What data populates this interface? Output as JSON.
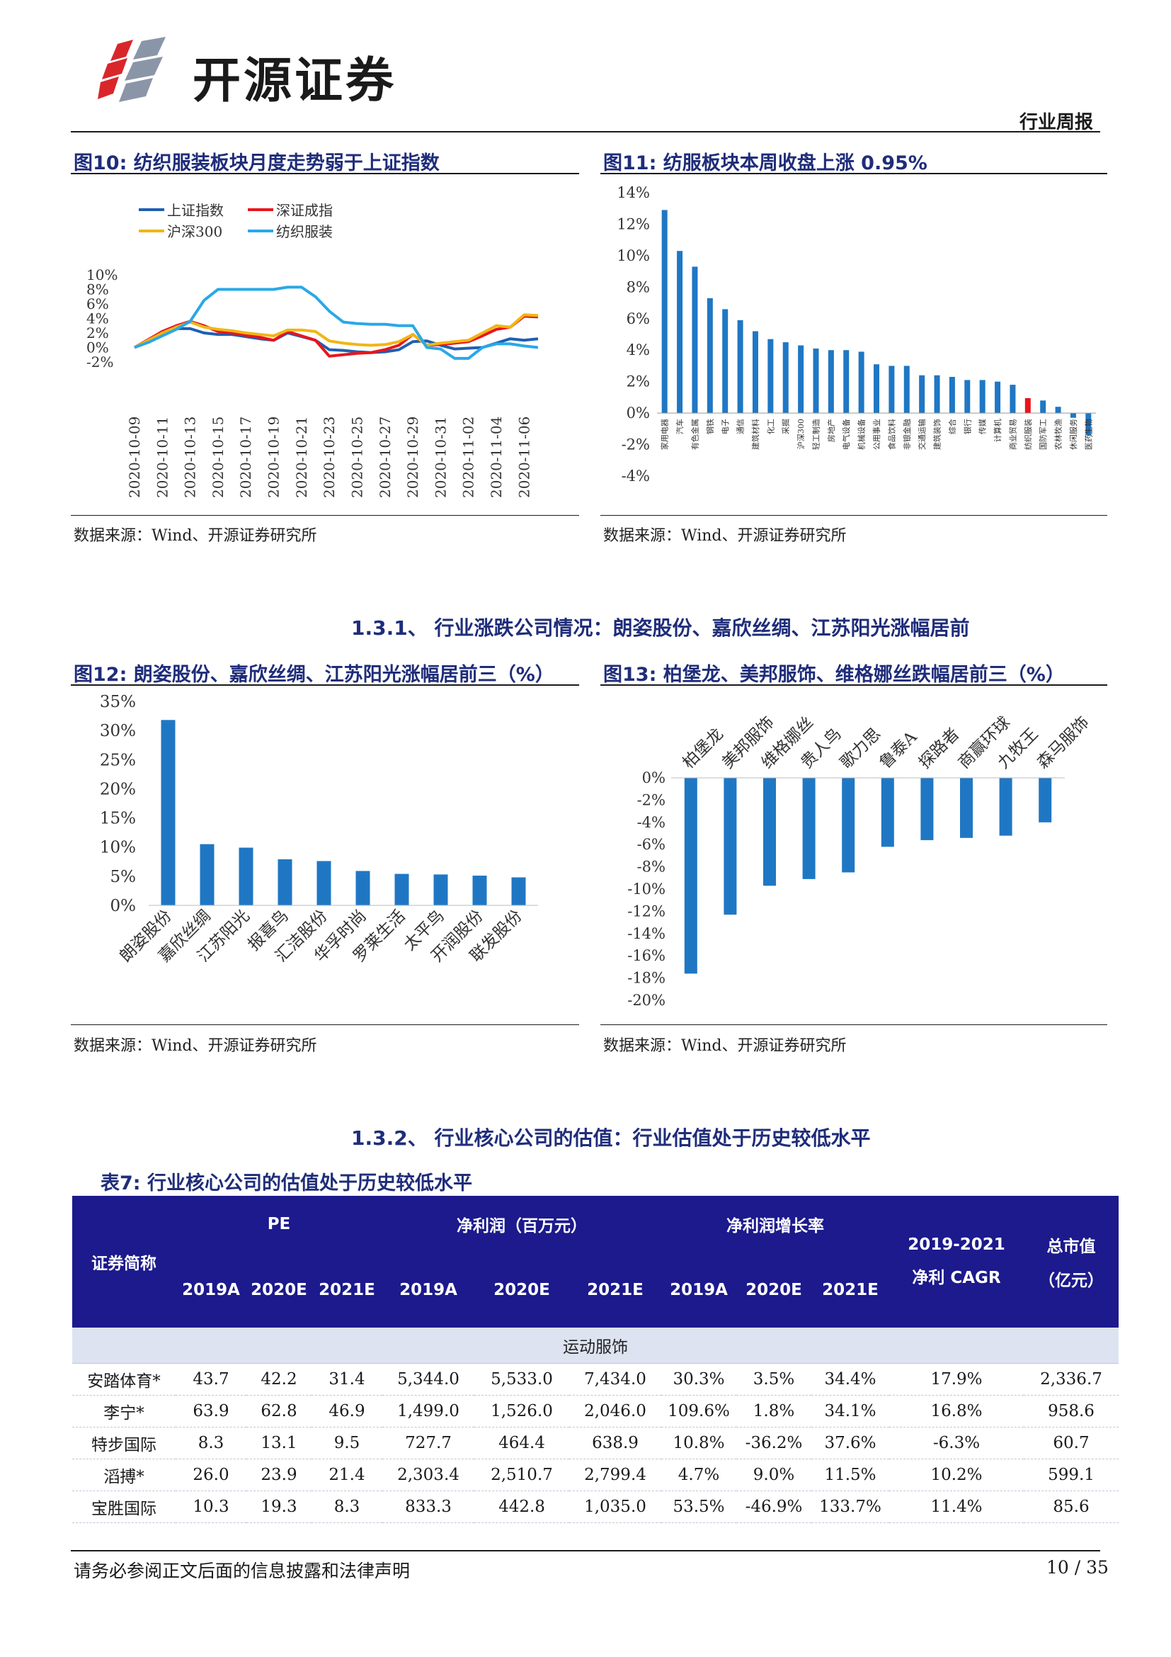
{
  "header": {
    "logo_text": "开源证券",
    "doc_type": "行业周报"
  },
  "fig10": {
    "title": "图10: 纺织服装板块月度走势弱于上证指数",
    "source": "数据来源：Wind、开源证券研究所",
    "chart_data": {
      "type": "line",
      "x": [
        "2020-10-09",
        "2020-10-10",
        "2020-10-11",
        "2020-10-12",
        "2020-10-13",
        "2020-10-14",
        "2020-10-15",
        "2020-10-16",
        "2020-10-17",
        "2020-10-18",
        "2020-10-19",
        "2020-10-20",
        "2020-10-21",
        "2020-10-22",
        "2020-10-23",
        "2020-10-24",
        "2020-10-25",
        "2020-10-26",
        "2020-10-27",
        "2020-10-28",
        "2020-10-29",
        "2020-10-30",
        "2020-10-31",
        "2020-11-01",
        "2020-11-02",
        "2020-11-03",
        "2020-11-04",
        "2020-11-05",
        "2020-11-06",
        "2020-11-07"
      ],
      "xticks": [
        "2020-10-09",
        "2020-10-11",
        "2020-10-13",
        "2020-10-15",
        "2020-10-17",
        "2020-10-19",
        "2020-10-21",
        "2020-10-23",
        "2020-10-25",
        "2020-10-27",
        "2020-10-29",
        "2020-10-31",
        "2020-11-02",
        "2020-11-04",
        "2020-11-06"
      ],
      "ylim": [
        -2,
        10
      ],
      "yticks": [
        "10%",
        "8%",
        "6%",
        "4%",
        "2%",
        "0%",
        "-2%"
      ],
      "series": [
        {
          "name": "上证指数",
          "color": "#1f5fb0",
          "values": [
            0,
            0.9,
            1.8,
            2.6,
            2.6,
            2.0,
            1.8,
            1.8,
            1.5,
            1.2,
            1.0,
            2.0,
            1.5,
            1.0,
            -0.3,
            -0.4,
            -0.6,
            -0.7,
            -0.6,
            -0.3,
            0.8,
            0.9,
            0.3,
            -0.2,
            -0.1,
            0,
            0.6,
            1.2,
            1.0,
            1.2
          ]
        },
        {
          "name": "深证成指",
          "color": "#e8151b",
          "values": [
            0,
            1.1,
            2.2,
            3.0,
            3.6,
            3.0,
            2.2,
            2.0,
            1.7,
            1.4,
            1.0,
            2.2,
            1.6,
            1.0,
            -1.2,
            -1.0,
            -0.8,
            -0.7,
            -0.3,
            0.3,
            1.8,
            0.3,
            0.4,
            0.6,
            0.8,
            1.6,
            2.5,
            2.8,
            4.3,
            4.2
          ]
        },
        {
          "name": "沪深300",
          "color": "#f2b515",
          "values": [
            0,
            1.0,
            2.0,
            2.8,
            3.5,
            2.8,
            2.5,
            2.3,
            2.0,
            1.8,
            1.6,
            2.4,
            2.4,
            2.2,
            0.9,
            0.6,
            0.4,
            0.3,
            0.4,
            0.8,
            1.8,
            0.3,
            0.6,
            0.8,
            1.0,
            2.0,
            3.0,
            2.8,
            4.5,
            4.4
          ]
        },
        {
          "name": "纺织服装",
          "color": "#29a8e8",
          "values": [
            0,
            0.7,
            1.6,
            2.5,
            3.6,
            6.5,
            8.0,
            8.0,
            8.0,
            8.0,
            8.0,
            8.3,
            8.3,
            7.0,
            5.0,
            3.5,
            3.3,
            3.2,
            3.2,
            3.0,
            3.0,
            0,
            -0.2,
            -1.5,
            -1.5,
            0,
            0.5,
            0.5,
            0.2,
            0
          ]
        }
      ],
      "legend": [
        "上证指数",
        "深证成指",
        "沪深300",
        "纺织服装"
      ]
    }
  },
  "fig11": {
    "title": "图11: 纺服板块本周收盘上涨 0.95%",
    "source": "数据来源：Wind、开源证券研究所",
    "chart_data": {
      "type": "bar",
      "ylim": [
        -4,
        14
      ],
      "yticks": [
        "14%",
        "12%",
        "10%",
        "8%",
        "6%",
        "4%",
        "2%",
        "0%",
        "-2%",
        "-4%"
      ],
      "categories": [
        "家用电器",
        "汽车",
        "有色金属",
        "钢铁",
        "电子",
        "通信",
        "建筑材料",
        "化工",
        "采掘",
        "沪深300",
        "轻工制造",
        "房地产",
        "电气设备",
        "机械设备",
        "公用事业",
        "食品饮料",
        "非银金融",
        "交通运输",
        "建筑装饰",
        "综合",
        "银行",
        "传媒",
        "计算机",
        "商业贸易",
        "纺织服装",
        "国防军工",
        "农林牧渔",
        "休闲服务",
        "医药生物"
      ],
      "values": [
        12.9,
        10.3,
        9.3,
        7.3,
        6.6,
        5.9,
        5.2,
        4.7,
        4.5,
        4.3,
        4.1,
        4.0,
        4.0,
        3.9,
        3.1,
        3.0,
        3.0,
        2.4,
        2.4,
        2.3,
        2.1,
        2.1,
        2.0,
        1.8,
        0.95,
        0.8,
        0.4,
        -0.3,
        -1.4
      ],
      "highlight_index": 24,
      "bar_color": "#1f77c4",
      "highlight_color": "#e8151b"
    }
  },
  "section_131": "1.3.1、 行业涨跌公司情况：朗姿股份、嘉欣丝绸、江苏阳光涨幅居前",
  "fig12": {
    "title": "图12: 朗姿股份、嘉欣丝绸、江苏阳光涨幅居前三（%）",
    "source": "数据来源：Wind、开源证券研究所",
    "chart_data": {
      "type": "bar",
      "ylim": [
        0,
        35
      ],
      "yticks": [
        "35%",
        "30%",
        "25%",
        "20%",
        "15%",
        "10%",
        "5%",
        "0%"
      ],
      "categories": [
        "朗姿股份",
        "嘉欣丝绸",
        "江苏阳光",
        "报喜鸟",
        "汇洁股份",
        "华孚时尚",
        "罗莱生活",
        "太平鸟",
        "开润股份",
        "联发股份"
      ],
      "values": [
        31.8,
        10.5,
        9.9,
        7.9,
        7.6,
        5.9,
        5.4,
        5.3,
        5.1,
        4.8
      ],
      "bar_color": "#1f77c4"
    }
  },
  "fig13": {
    "title": "图13: 柏堡龙、美邦服饰、维格娜丝跌幅居前三（%）",
    "source": "数据来源：Wind、开源证券研究所",
    "chart_data": {
      "type": "bar",
      "ylim": [
        -20,
        0
      ],
      "yticks": [
        "0%",
        "-2%",
        "-4%",
        "-6%",
        "-8%",
        "-10%",
        "-12%",
        "-14%",
        "-16%",
        "-18%",
        "-20%"
      ],
      "categories": [
        "柏堡龙",
        "美邦服饰",
        "维格娜丝",
        "贵人鸟",
        "歌力思",
        "鲁泰A",
        "探路者",
        "商赢环球",
        "九牧王",
        "森马服饰"
      ],
      "values": [
        -17.6,
        -12.3,
        -9.7,
        -9.1,
        -8.5,
        -6.2,
        -5.6,
        -5.4,
        -5.2,
        -4.0
      ],
      "bar_color": "#1f77c4"
    }
  },
  "section_132": "1.3.2、 行业核心公司的估值：行业估值处于历史较低水平",
  "table7": {
    "title": "表7: 行业核心公司的估值处于历史较低水平",
    "head": {
      "name": "证券简称",
      "pe": "PE",
      "np": "净利润（百万元）",
      "gr": "净利润增长率",
      "cagr_1": "2019-2021",
      "cagr_2": "净利 CAGR",
      "mcap_1": "总市值",
      "mcap_2": "（亿元）",
      "years": [
        "2019A",
        "2020E",
        "2021E",
        "2019A",
        "2020E",
        "2021E",
        "2019A",
        "2020E",
        "2021E"
      ]
    },
    "category": "运动服饰",
    "rows": [
      [
        "安踏体育*",
        "43.7",
        "42.2",
        "31.4",
        "5,344.0",
        "5,533.0",
        "7,434.0",
        "30.3%",
        "3.5%",
        "34.4%",
        "17.9%",
        "2,336.7"
      ],
      [
        "李宁*",
        "63.9",
        "62.8",
        "46.9",
        "1,499.0",
        "1,526.0",
        "2,046.0",
        "109.6%",
        "1.8%",
        "34.1%",
        "16.8%",
        "958.6"
      ],
      [
        "特步国际",
        "8.3",
        "13.1",
        "9.5",
        "727.7",
        "464.4",
        "638.9",
        "10.8%",
        "-36.2%",
        "37.6%",
        "-6.3%",
        "60.7"
      ],
      [
        "滔搏*",
        "26.0",
        "23.9",
        "21.4",
        "2,303.4",
        "2,510.7",
        "2,799.4",
        "4.7%",
        "9.0%",
        "11.5%",
        "10.2%",
        "599.1"
      ],
      [
        "宝胜国际",
        "10.3",
        "19.3",
        "8.3",
        "833.3",
        "442.8",
        "1,035.0",
        "53.5%",
        "-46.9%",
        "133.7%",
        "11.4%",
        "85.6"
      ]
    ]
  },
  "footer": {
    "disclaimer": "请务必参阅正文后面的信息披露和法律声明",
    "page": "10 / 35"
  }
}
